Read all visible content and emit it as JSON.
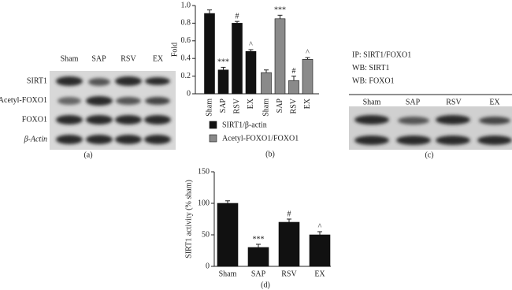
{
  "panel_a": {
    "label": "(a)",
    "columns": [
      "Sham",
      "SAP",
      "RSV",
      "EX"
    ],
    "rows": [
      "SIRT1",
      "Acetyl-FOXO1",
      "FOXO1",
      "β-Actin"
    ]
  },
  "panel_c": {
    "label": "(c)",
    "notes": [
      "IP: SIRT1/FOXO1",
      "WB: SIRT1",
      "WB: FOXO1"
    ],
    "columns": [
      "Sham",
      "SAP",
      "RSV",
      "EX"
    ]
  },
  "chart_data": [
    {
      "type": "bar",
      "panel": "(b)",
      "y_label": "Fold",
      "categories": [
        "Sham",
        "SAP",
        "RSV",
        "EX"
      ],
      "ylim": [
        0,
        1.0
      ],
      "yticks": [
        0,
        0.2,
        0.4,
        0.6,
        0.8,
        {
          "value": 1.0,
          "label": "1.0"
        }
      ],
      "series": [
        {
          "name": "SIRT1/β-actin",
          "color": "#111111",
          "values": [
            0.91,
            0.27,
            0.8,
            0.48
          ],
          "errors": [
            0.04,
            0.03,
            0.02,
            0.02
          ],
          "annotations": [
            null,
            "***",
            "#",
            "^"
          ]
        },
        {
          "name": "Acetyl-FOXO1/FOXO1",
          "color": "#8a8a8a",
          "values": [
            0.24,
            0.85,
            0.15,
            0.39
          ],
          "errors": [
            0.03,
            0.04,
            0.05,
            0.02
          ],
          "annotations": [
            null,
            "***",
            "#",
            "^"
          ]
        }
      ]
    },
    {
      "type": "bar",
      "panel": "(d)",
      "y_label": "SIRT1 activity (% sham)",
      "categories": [
        "Sham",
        "SAP",
        "RSV",
        "EX"
      ],
      "ylim": [
        0,
        150
      ],
      "yticks": [
        0,
        50,
        100,
        150
      ],
      "series": [
        {
          "color": "#111111",
          "values": [
            100,
            30,
            70,
            50
          ],
          "errors": [
            4,
            5,
            5,
            5
          ],
          "annotations": [
            null,
            "***",
            "#",
            "^"
          ]
        }
      ]
    }
  ]
}
